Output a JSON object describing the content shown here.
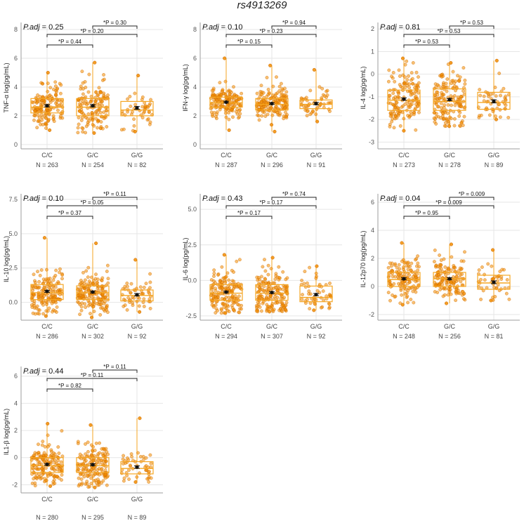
{
  "title": "rs4913269",
  "colors": {
    "point_fill": "#f28c00",
    "point_stroke": "#cc6a00",
    "box_stroke": "#f5a623",
    "mean_marker": "#111111",
    "grid": "#e6e6e6",
    "axis": "#9e9e9e"
  },
  "chart_data": [
    {
      "type": "box",
      "ylabel": "TNF-α log(pg/mL)",
      "ylim": [
        -0.3,
        8.2
      ],
      "yticks": [
        "0",
        "2",
        "4",
        "6",
        "8"
      ],
      "padj_label": "P.adj",
      "padj_value": "= 0.25",
      "categories": [
        "C/C",
        "G/C",
        "G/G"
      ],
      "n_labels": [
        "N = 263",
        "N = 254",
        "N = 82"
      ],
      "n": [
        263,
        254,
        82
      ],
      "boxes": [
        {
          "q1": 2.2,
          "median": 2.6,
          "q3": 3.2,
          "lo": 1.0,
          "hi": 5.0,
          "mean": 2.7,
          "se": 0.08
        },
        {
          "q1": 2.0,
          "median": 2.6,
          "q3": 3.2,
          "lo": 0.8,
          "hi": 5.7,
          "mean": 2.7,
          "se": 0.08
        },
        {
          "q1": 2.0,
          "median": 2.4,
          "q3": 3.0,
          "lo": 0.9,
          "hi": 4.8,
          "mean": 2.55,
          "se": 0.1
        }
      ],
      "comparisons": [
        {
          "from": 0,
          "to": 1,
          "label": "*P = 0.44"
        },
        {
          "from": 0,
          "to": 2,
          "label": "*P = 0.20"
        },
        {
          "from": 1,
          "to": 2,
          "label": "*P = 0.30"
        }
      ]
    },
    {
      "type": "box",
      "ylabel": "IFN-γ log(pg/mL)",
      "ylim": [
        -0.3,
        8.2
      ],
      "yticks": [
        "0",
        "2",
        "4",
        "6",
        "8"
      ],
      "padj_label": "P.adj",
      "padj_value": "= 0.10",
      "categories": [
        "C/C",
        "G/C",
        "G/G"
      ],
      "n_labels": [
        "N = 287",
        "N = 296",
        "N = 91"
      ],
      "n": [
        287,
        296,
        91
      ],
      "boxes": [
        {
          "q1": 2.6,
          "median": 2.9,
          "q3": 3.3,
          "lo": 1.0,
          "hi": 6.0,
          "mean": 2.95,
          "se": 0.06
        },
        {
          "q1": 2.4,
          "median": 2.8,
          "q3": 3.2,
          "lo": 0.9,
          "hi": 5.5,
          "mean": 2.85,
          "se": 0.06
        },
        {
          "q1": 2.5,
          "median": 2.8,
          "q3": 3.1,
          "lo": 1.6,
          "hi": 5.2,
          "mean": 2.85,
          "se": 0.08
        }
      ],
      "comparisons": [
        {
          "from": 0,
          "to": 1,
          "label": "*P = 0.15"
        },
        {
          "from": 0,
          "to": 2,
          "label": "*P = 0.23"
        },
        {
          "from": 1,
          "to": 2,
          "label": "*P = 0.94"
        }
      ]
    },
    {
      "type": "box",
      "ylabel": "IL-4 log(pg/mL)",
      "ylim": [
        -3.3,
        2.1
      ],
      "yticks": [
        "-3",
        "-2",
        "-1",
        "0",
        "1",
        "2"
      ],
      "padj_label": "P.adj",
      "padj_value": "= 0.81",
      "categories": [
        "C/C",
        "G/C",
        "G/G"
      ],
      "n_labels": [
        "N = 273",
        "N = 278",
        "N = 89"
      ],
      "n": [
        273,
        278,
        89
      ],
      "boxes": [
        {
          "q1": -1.6,
          "median": -1.15,
          "q3": -0.7,
          "lo": -2.5,
          "hi": 0.7,
          "mean": -1.1,
          "se": 0.05
        },
        {
          "q1": -1.6,
          "median": -1.2,
          "q3": -0.65,
          "lo": -2.3,
          "hi": 0.5,
          "mean": -1.12,
          "se": 0.05
        },
        {
          "q1": -1.55,
          "median": -1.25,
          "q3": -0.8,
          "lo": -2.0,
          "hi": 0.6,
          "mean": -1.2,
          "se": 0.07
        }
      ],
      "comparisons": [
        {
          "from": 0,
          "to": 1,
          "label": "*P = 0.53"
        },
        {
          "from": 0,
          "to": 2,
          "label": "*P = 0.53"
        },
        {
          "from": 1,
          "to": 2,
          "label": "*P = 0.53"
        }
      ]
    },
    {
      "type": "box",
      "ylabel": "IL-10 log(pg/mL)",
      "ylim": [
        -1.3,
        7.6
      ],
      "yticks": [
        "0.0",
        "2.5",
        "5.0",
        "7.5"
      ],
      "ytick_values": [
        0,
        2.5,
        5,
        7.5
      ],
      "padj_label": "P.adj",
      "padj_value": "= 0.10",
      "categories": [
        "C/C",
        "G/C",
        "G/G"
      ],
      "n_labels": [
        "N = 286",
        "N = 302",
        "N = 92"
      ],
      "n": [
        286,
        302,
        92
      ],
      "boxes": [
        {
          "q1": 0.2,
          "median": 0.7,
          "q3": 1.3,
          "lo": -1.0,
          "hi": 4.7,
          "mean": 0.8,
          "se": 0.07
        },
        {
          "q1": 0.2,
          "median": 0.7,
          "q3": 1.2,
          "lo": -1.1,
          "hi": 4.3,
          "mean": 0.75,
          "se": 0.07
        },
        {
          "q1": 0.1,
          "median": 0.5,
          "q3": 0.9,
          "lo": -0.7,
          "hi": 3.1,
          "mean": 0.55,
          "se": 0.09
        }
      ],
      "comparisons": [
        {
          "from": 0,
          "to": 1,
          "label": "*P = 0.37"
        },
        {
          "from": 0,
          "to": 2,
          "label": "*P = 0.05"
        },
        {
          "from": 1,
          "to": 2,
          "label": "*P = 0.11"
        }
      ]
    },
    {
      "type": "box",
      "ylabel": "IL-6 log(pg/mL)",
      "ylim": [
        -2.8,
        5.8
      ],
      "yticks": [
        "-2.5",
        "0.0",
        "2.5",
        "5.0"
      ],
      "ytick_values": [
        -2.5,
        0,
        2.5,
        5
      ],
      "padj_label": "P.adj",
      "padj_value": "= 0.43",
      "categories": [
        "C/C",
        "G/C",
        "G/G"
      ],
      "n_labels": [
        "N = 294",
        "N = 307",
        "N = 92"
      ],
      "n": [
        294,
        307,
        92
      ],
      "boxes": [
        {
          "q1": -1.4,
          "median": -0.9,
          "q3": -0.3,
          "lo": -2.3,
          "hi": 1.8,
          "mean": -0.82,
          "se": 0.06
        },
        {
          "q1": -1.4,
          "median": -0.9,
          "q3": -0.3,
          "lo": -2.2,
          "hi": 1.6,
          "mean": -0.85,
          "se": 0.06
        },
        {
          "q1": -1.5,
          "median": -1.2,
          "q3": -0.4,
          "lo": -2.1,
          "hi": 1.0,
          "mean": -1.0,
          "se": 0.08
        }
      ],
      "comparisons": [
        {
          "from": 0,
          "to": 1,
          "label": "*P = 0.17"
        },
        {
          "from": 0,
          "to": 2,
          "label": "*P = 0.17"
        },
        {
          "from": 1,
          "to": 2,
          "label": "*P = 0.74"
        }
      ]
    },
    {
      "type": "box",
      "ylabel": "IL-12p70 log(pg/mL)",
      "ylim": [
        -2.4,
        6.3
      ],
      "yticks": [
        "-2",
        "0",
        "2",
        "4",
        "6"
      ],
      "padj_label": "P.adj",
      "padj_value": "= 0.04",
      "categories": [
        "C/C",
        "G/C",
        "G/G"
      ],
      "n_labels": [
        "N = 248",
        "N = 256",
        "N = 81"
      ],
      "n": [
        248,
        256,
        81
      ],
      "boxes": [
        {
          "q1": 0.0,
          "median": 0.5,
          "q3": 1.0,
          "lo": -1.3,
          "hi": 3.1,
          "mean": 0.55,
          "se": 0.07
        },
        {
          "q1": 0.0,
          "median": 0.55,
          "q3": 1.0,
          "lo": -1.2,
          "hi": 3.0,
          "mean": 0.55,
          "se": 0.07
        },
        {
          "q1": -0.2,
          "median": 0.25,
          "q3": 0.8,
          "lo": -1.0,
          "hi": 2.6,
          "mean": 0.3,
          "se": 0.1
        }
      ],
      "comparisons": [
        {
          "from": 0,
          "to": 1,
          "label": "*P = 0.95"
        },
        {
          "from": 0,
          "to": 2,
          "label": "*P = 0.009"
        },
        {
          "from": 1,
          "to": 2,
          "label": "*P = 0.009"
        }
      ]
    },
    {
      "type": "box",
      "ylabel": "IL1-β log(pg/mL)",
      "ylim": [
        -2.6,
        6.4
      ],
      "yticks": [
        "-2",
        "0",
        "2",
        "4",
        "6"
      ],
      "padj_label": "P.adj",
      "padj_value": "= 0.44",
      "categories": [
        "C/C",
        "G/C",
        "G/G"
      ],
      "n_labels": [
        "N = 280",
        "N = 295",
        "N = 89"
      ],
      "n": [
        280,
        295,
        89
      ],
      "boxes": [
        {
          "q1": -1.1,
          "median": -0.6,
          "q3": 0.0,
          "lo": -2.1,
          "hi": 2.5,
          "mean": -0.5,
          "se": 0.07
        },
        {
          "q1": -1.1,
          "median": -0.6,
          "q3": 0.0,
          "lo": -2.2,
          "hi": 2.4,
          "mean": -0.52,
          "se": 0.07
        },
        {
          "q1": -1.2,
          "median": -0.8,
          "q3": -0.3,
          "lo": -1.8,
          "hi": 2.9,
          "mean": -0.7,
          "se": 0.09
        }
      ],
      "comparisons": [
        {
          "from": 0,
          "to": 1,
          "label": "*P = 0.82"
        },
        {
          "from": 0,
          "to": 2,
          "label": "*P = 0.11"
        },
        {
          "from": 1,
          "to": 2,
          "label": "*P = 0.11"
        }
      ]
    }
  ]
}
